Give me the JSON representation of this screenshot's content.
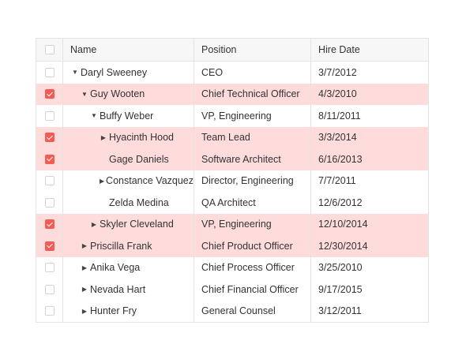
{
  "columns": {
    "name": "Name",
    "position": "Position",
    "hire_date": "Hire Date"
  },
  "rows": [
    {
      "name": "Daryl Sweeney",
      "position": "CEO",
      "hire_date": "3/7/2012",
      "level": 0,
      "expander": "expanded",
      "selected": false
    },
    {
      "name": "Guy Wooten",
      "position": "Chief Technical Officer",
      "hire_date": "4/3/2010",
      "level": 1,
      "expander": "expanded",
      "selected": true
    },
    {
      "name": "Buffy Weber",
      "position": "VP, Engineering",
      "hire_date": "8/11/2011",
      "level": 2,
      "expander": "expanded",
      "selected": false
    },
    {
      "name": "Hyacinth Hood",
      "position": "Team Lead",
      "hire_date": "3/3/2014",
      "level": 3,
      "expander": "collapsed",
      "selected": true
    },
    {
      "name": "Gage Daniels",
      "position": "Software Architect",
      "hire_date": "6/16/2013",
      "level": 3,
      "expander": "none",
      "selected": true
    },
    {
      "name": "Constance Vazquez",
      "position": "Director, Engineering",
      "hire_date": "7/7/2011",
      "level": 3,
      "expander": "collapsed",
      "selected": false
    },
    {
      "name": "Zelda Medina",
      "position": "QA Architect",
      "hire_date": "12/6/2012",
      "level": 3,
      "expander": "none",
      "selected": false
    },
    {
      "name": "Skyler Cleveland",
      "position": "VP, Engineering",
      "hire_date": "12/10/2014",
      "level": 2,
      "expander": "collapsed",
      "selected": true
    },
    {
      "name": "Priscilla Frank",
      "position": "Chief Product Officer",
      "hire_date": "12/30/2014",
      "level": 1,
      "expander": "collapsed",
      "selected": true
    },
    {
      "name": "Anika Vega",
      "position": "Chief Process Officer",
      "hire_date": "3/25/2010",
      "level": 1,
      "expander": "collapsed",
      "selected": false
    },
    {
      "name": "Nevada Hart",
      "position": "Chief Financial Officer",
      "hire_date": "9/17/2015",
      "level": 1,
      "expander": "collapsed",
      "selected": false
    },
    {
      "name": "Hunter Fry",
      "position": "General Counsel",
      "hire_date": "3/12/2011",
      "level": 1,
      "expander": "collapsed",
      "selected": false
    }
  ],
  "colors": {
    "selected_row": "#ffdcdc",
    "checkbox_checked": "#f25c54",
    "border": "#e3e3e3",
    "header_bg": "#f7f7f7"
  },
  "icons": {
    "expanded": "caret-down-icon",
    "collapsed": "caret-right-icon"
  }
}
